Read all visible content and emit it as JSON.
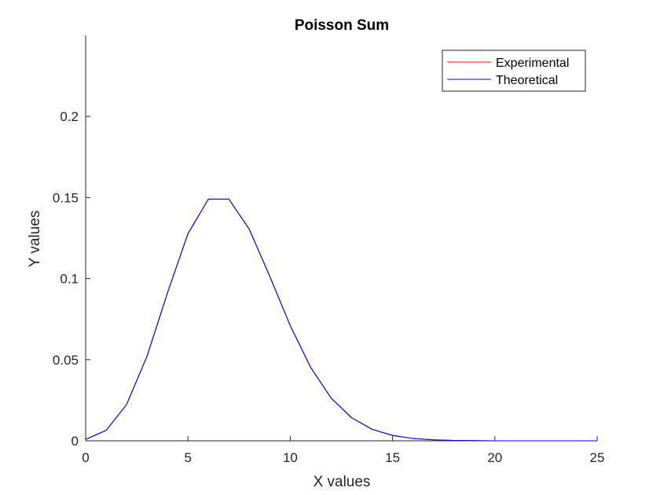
{
  "chart_data": {
    "type": "line",
    "title": "Poisson Sum",
    "xlabel": "X values",
    "ylabel": "Y values",
    "xlim": [
      0,
      25
    ],
    "ylim": [
      0,
      0.25
    ],
    "xticks": [
      0,
      5,
      10,
      15,
      20,
      25
    ],
    "xtick_labels": [
      "0",
      "5",
      "10",
      "15",
      "20",
      "25"
    ],
    "yticks": [
      0,
      0.05,
      0.1,
      0.15,
      0.2
    ],
    "ytick_labels": [
      "0",
      "0.05",
      "0.1",
      "0.15",
      "0.2"
    ],
    "grid": false,
    "legend_position": "top-right",
    "x": [
      0,
      1,
      2,
      3,
      4,
      5,
      6,
      7,
      8,
      9,
      10,
      11,
      12,
      13,
      14,
      15,
      16,
      17,
      18,
      19,
      20,
      21,
      22,
      23,
      24,
      25
    ],
    "series": [
      {
        "name": "Experimental",
        "color": "#ff0000",
        "values": [
          0.0009,
          0.0064,
          0.0223,
          0.0521,
          0.0912,
          0.1277,
          0.149,
          0.149,
          0.1304,
          0.1014,
          0.071,
          0.0452,
          0.0263,
          0.0142,
          0.0071,
          0.0033,
          0.0014,
          0.0006,
          0.0002,
          0.0001,
          0.0,
          0.0,
          0.0,
          0.0,
          0.0,
          0.0
        ]
      },
      {
        "name": "Theoretical",
        "color": "#0000ff",
        "values": [
          0.0009,
          0.0064,
          0.0223,
          0.0521,
          0.0912,
          0.1277,
          0.149,
          0.149,
          0.1304,
          0.1014,
          0.071,
          0.0452,
          0.0263,
          0.0142,
          0.0071,
          0.0033,
          0.0014,
          0.0006,
          0.0002,
          0.0001,
          0.0,
          0.0,
          0.0,
          0.0,
          0.0,
          0.0
        ]
      }
    ]
  }
}
